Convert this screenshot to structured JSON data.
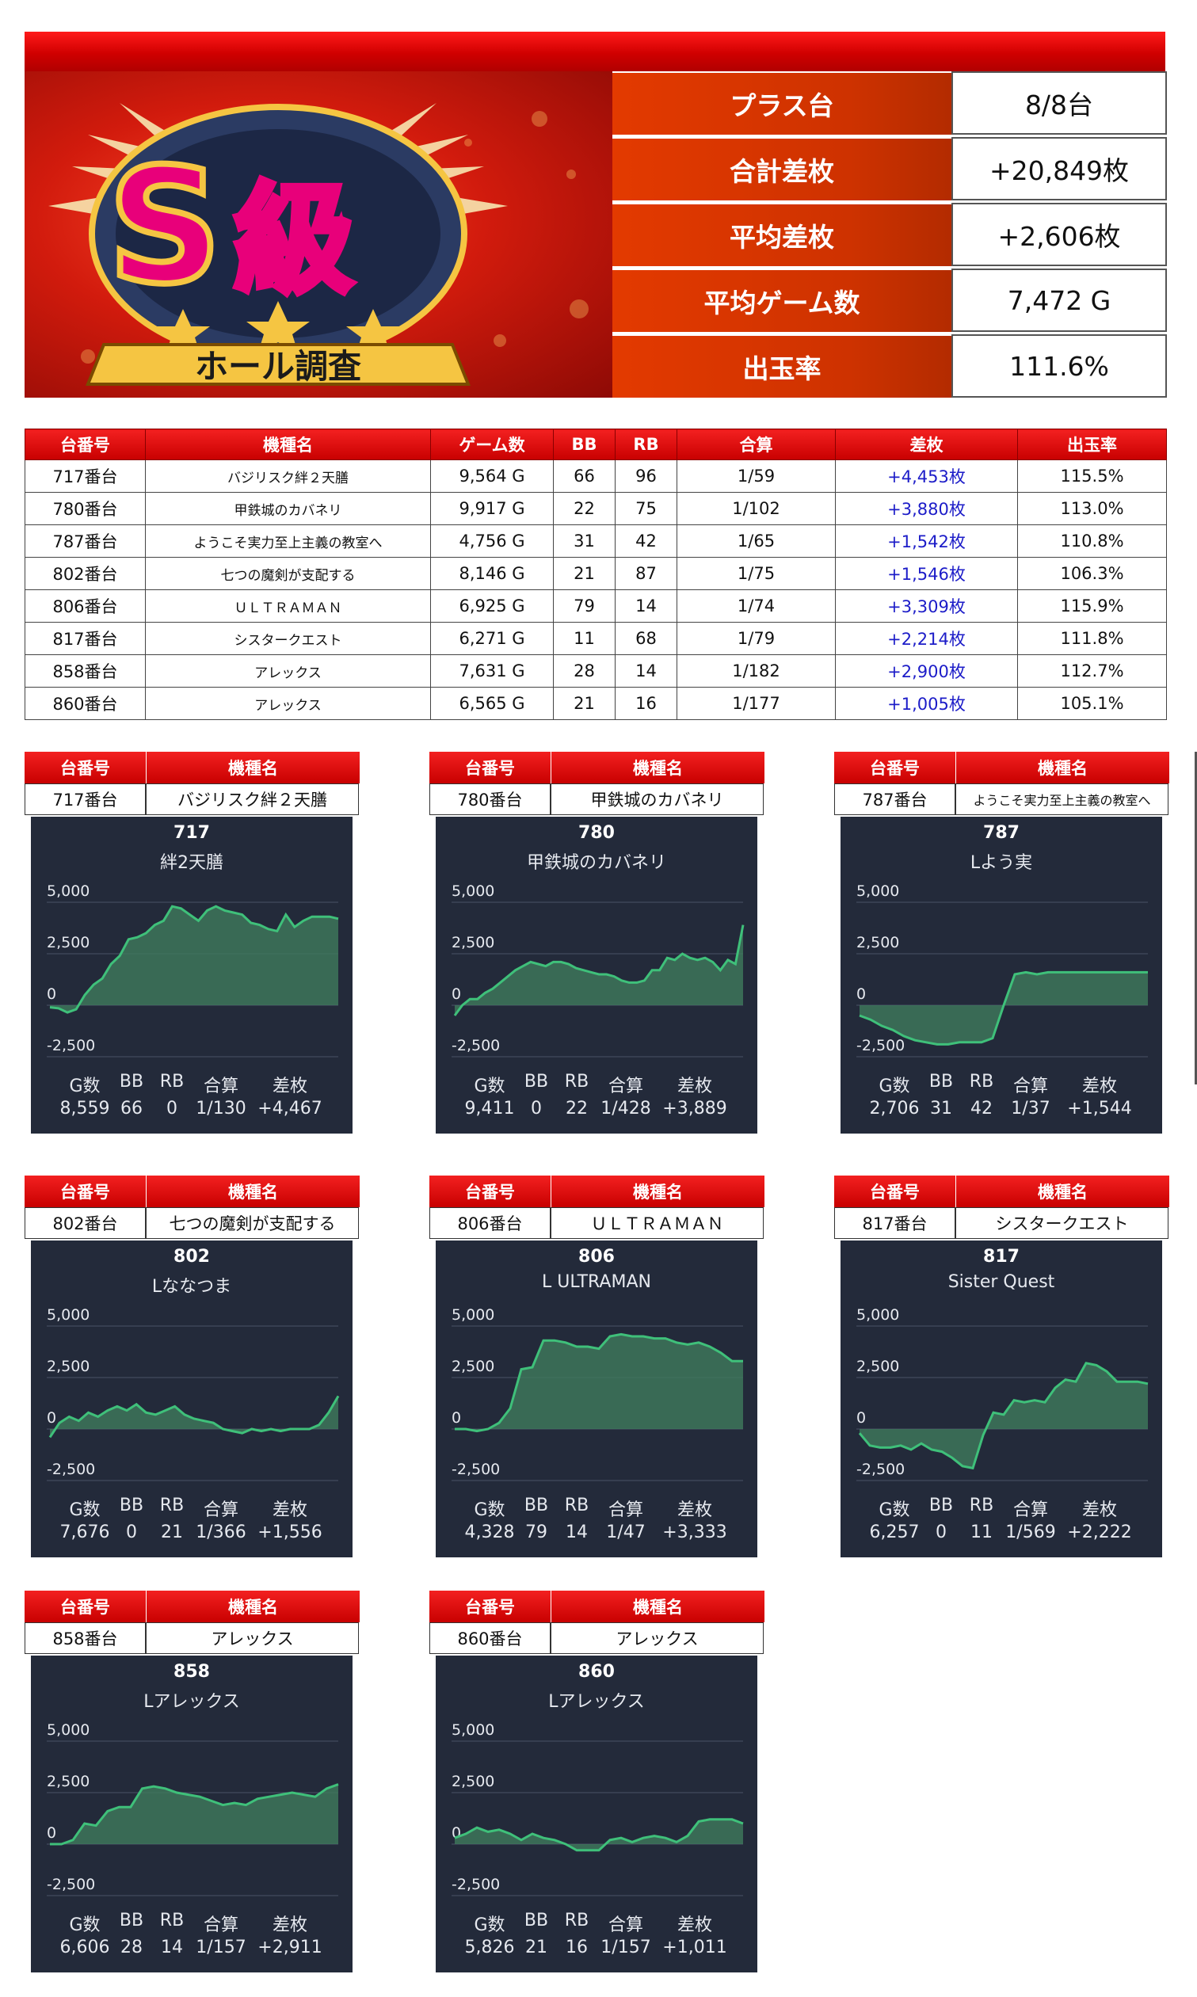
{
  "banner": {
    "logo_text": "S級",
    "ribbon_text": "ホール調査",
    "colors": {
      "background": "#d21b0d",
      "gold": "#f5c542",
      "magenta": "#e8007a"
    }
  },
  "summary": [
    {
      "label": "プラス台",
      "value": "8/8台"
    },
    {
      "label": "合計差枚",
      "value": "+20,849枚"
    },
    {
      "label": "平均差枚",
      "value": "+2,606枚"
    },
    {
      "label": "平均ゲーム数",
      "value": "7,472 G"
    },
    {
      "label": "出玉率",
      "value": "111.6%"
    }
  ],
  "table": {
    "headers": [
      "台番号",
      "機種名",
      "ゲーム数",
      "BB",
      "RB",
      "合算",
      "差枚",
      "出玉率"
    ],
    "rows": [
      [
        "717番台",
        "バジリスク絆２天膳",
        "9,564 G",
        "66",
        "96",
        "1/59",
        "+4,453枚",
        "115.5%"
      ],
      [
        "780番台",
        "甲鉄城のカバネリ",
        "9,917 G",
        "22",
        "75",
        "1/102",
        "+3,880枚",
        "113.0%"
      ],
      [
        "787番台",
        "ようこそ実力至上主義の教室へ",
        "4,756 G",
        "31",
        "42",
        "1/65",
        "+1,542枚",
        "110.8%"
      ],
      [
        "802番台",
        "七つの魔剣が支配する",
        "8,146 G",
        "21",
        "87",
        "1/75",
        "+1,546枚",
        "106.3%"
      ],
      [
        "806番台",
        "ＵＬＴＲＡＭＡＮ",
        "6,925 G",
        "79",
        "14",
        "1/74",
        "+3,309枚",
        "115.9%"
      ],
      [
        "817番台",
        "シスタークエスト",
        "6,271 G",
        "11",
        "68",
        "1/79",
        "+2,214枚",
        "111.8%"
      ],
      [
        "858番台",
        "アレックス",
        "7,631 G",
        "28",
        "14",
        "1/182",
        "+2,900枚",
        "112.7%"
      ],
      [
        "860番台",
        "アレックス",
        "6,565 G",
        "21",
        "16",
        "1/177",
        "+1,005枚",
        "105.1%"
      ]
    ]
  },
  "panel_header": {
    "col1": "台番号",
    "col2": "機種名"
  },
  "stats_header": [
    "G数",
    "BB",
    "RB",
    "合算",
    "差枚"
  ],
  "chart_data": [
    {
      "type": "area",
      "machine": "717番台",
      "model": "バジリスク絆２天膳",
      "number": "717",
      "title": "絆2天膳",
      "yticks": [
        "5,000",
        "2,500",
        "0",
        "-2,500"
      ],
      "ylim": [
        -2500,
        5000
      ],
      "values": [
        -100,
        -150,
        -350,
        -200,
        500,
        1000,
        1300,
        2000,
        2400,
        3200,
        3300,
        3500,
        3900,
        4100,
        4800,
        4700,
        4400,
        4100,
        4600,
        4800,
        4600,
        4500,
        4400,
        4000,
        3900,
        3700,
        3600,
        4400,
        3800,
        4100,
        4300,
        4300,
        4300,
        4200
      ],
      "stats": [
        "8,559",
        "66",
        "0",
        "1/130",
        "+4,467"
      ]
    },
    {
      "type": "area",
      "machine": "780番台",
      "model": "甲鉄城のカバネリ",
      "number": "780",
      "title": "甲鉄城のカバネリ",
      "yticks": [
        "5,000",
        "2,500",
        "0",
        "-2,500"
      ],
      "ylim": [
        -2500,
        5000
      ],
      "values": [
        -500,
        0,
        300,
        300,
        600,
        800,
        1100,
        1400,
        1700,
        1900,
        2100,
        2000,
        1900,
        2100,
        2100,
        2000,
        1800,
        1700,
        1600,
        1500,
        1500,
        1400,
        1200,
        1100,
        1100,
        1200,
        1700,
        1700,
        2300,
        2200,
        2500,
        2300,
        2200,
        2300,
        2100,
        1700,
        2200,
        2000,
        3900
      ],
      "stats": [
        "9,411",
        "0",
        "22",
        "1/428",
        "+3,889"
      ]
    },
    {
      "type": "area",
      "machine": "787番台",
      "model": "ようこそ実力至上主義の教室へ",
      "number": "787",
      "title": "Lよう実",
      "yticks": [
        "5,000",
        "2,500",
        "0",
        "-2,500"
      ],
      "ylim": [
        -2500,
        5000
      ],
      "values": [
        -500,
        -700,
        -1000,
        -1200,
        -1500,
        -1700,
        -1800,
        -1900,
        -1900,
        -1800,
        -1800,
        -1800,
        -1600,
        0,
        1500,
        1600,
        1500,
        1600,
        1600,
        1600,
        1600,
        1600,
        1600,
        1600,
        1600,
        1600,
        1600
      ],
      "stats": [
        "2,706",
        "31",
        "42",
        "1/37",
        "+1,544"
      ]
    },
    {
      "type": "area",
      "machine": "802番台",
      "model": "七つの魔剣が支配する",
      "number": "802",
      "title": "Lななつま",
      "yticks": [
        "5,000",
        "2,500",
        "0",
        "-2,500"
      ],
      "ylim": [
        -2500,
        5000
      ],
      "values": [
        -400,
        300,
        600,
        400,
        800,
        600,
        900,
        1100,
        900,
        1200,
        800,
        700,
        900,
        1100,
        700,
        500,
        400,
        300,
        0,
        -100,
        -200,
        0,
        -100,
        0,
        -100,
        0,
        0,
        0,
        200,
        800,
        1600
      ],
      "stats": [
        "7,676",
        "0",
        "21",
        "1/366",
        "+1,556"
      ]
    },
    {
      "type": "area",
      "machine": "806番台",
      "model": "ＵＬＴＲＡＭＡＮ",
      "number": "806",
      "title": "L ULTRAMAN",
      "yticks": [
        "5,000",
        "2,500",
        "0",
        "-2,500"
      ],
      "ylim": [
        -2500,
        5000
      ],
      "values": [
        0,
        0,
        -100,
        0,
        300,
        1000,
        2900,
        3000,
        4300,
        4300,
        4200,
        4000,
        4000,
        3900,
        4500,
        4600,
        4500,
        4500,
        4400,
        4400,
        4200,
        4100,
        4200,
        4000,
        3700,
        3300,
        3300
      ],
      "stats": [
        "4,328",
        "79",
        "14",
        "1/47",
        "+3,333"
      ]
    },
    {
      "type": "area",
      "machine": "817番台",
      "model": "シスタークエスト",
      "number": "817",
      "title": "Sister Quest",
      "yticks": [
        "5,000",
        "2,500",
        "0",
        "-2,500"
      ],
      "ylim": [
        -2500,
        5000
      ],
      "values": [
        -200,
        -800,
        -900,
        -900,
        -800,
        -1000,
        -700,
        -1000,
        -1100,
        -1400,
        -1800,
        -1900,
        -300,
        800,
        700,
        1400,
        1300,
        1400,
        1300,
        2000,
        2400,
        2300,
        3200,
        3100,
        2800,
        2300,
        2300,
        2300,
        2200
      ],
      "stats": [
        "6,257",
        "0",
        "11",
        "1/569",
        "+2,222"
      ]
    },
    {
      "type": "area",
      "machine": "858番台",
      "model": "アレックス",
      "number": "858",
      "title": "Lアレックス",
      "yticks": [
        "5,000",
        "2,500",
        "0",
        "-2,500"
      ],
      "ylim": [
        -2500,
        5000
      ],
      "values": [
        0,
        0,
        200,
        1000,
        900,
        1600,
        1800,
        1800,
        2700,
        2800,
        2700,
        2500,
        2400,
        2300,
        2100,
        1900,
        2000,
        1900,
        2200,
        2300,
        2400,
        2500,
        2400,
        2300,
        2700,
        2900
      ],
      "stats": [
        "6,606",
        "28",
        "14",
        "1/157",
        "+2,911"
      ]
    },
    {
      "type": "area",
      "machine": "860番台",
      "model": "アレックス",
      "number": "860",
      "title": "Lアレックス",
      "yticks": [
        "5,000",
        "2,500",
        "0",
        "-2,500"
      ],
      "ylim": [
        -2500,
        5000
      ],
      "values": [
        300,
        500,
        800,
        600,
        700,
        500,
        200,
        500,
        300,
        200,
        0,
        -300,
        -300,
        -300,
        200,
        300,
        100,
        300,
        400,
        300,
        100,
        400,
        1100,
        1200,
        1200,
        1200,
        1000
      ],
      "stats": [
        "5,826",
        "21",
        "16",
        "1/157",
        "+1,011"
      ]
    }
  ]
}
